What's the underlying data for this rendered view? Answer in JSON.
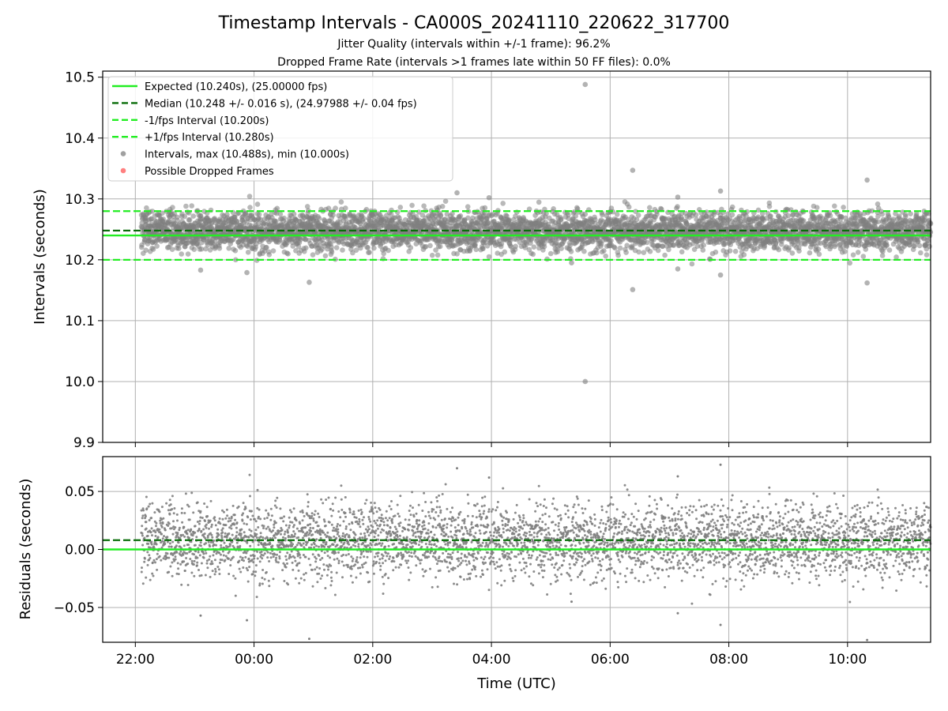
{
  "chart_data": {
    "type": "scatter",
    "title": "Timestamp Intervals - CA000S_20241110_220622_317700",
    "subtitle_1": "Jitter Quality (intervals within +/-1 frame): 96.2%",
    "subtitle_2": "Dropped Frame Rate (intervals >1 frames late within 50 FF files): 0.0%",
    "xlabel": "Time (UTC)",
    "x_range_hours": [
      21.45,
      35.4
    ],
    "x_ticks": [
      {
        "hour": 22,
        "label": "22:00"
      },
      {
        "hour": 24,
        "label": "00:00"
      },
      {
        "hour": 26,
        "label": "02:00"
      },
      {
        "hour": 28,
        "label": "04:00"
      },
      {
        "hour": 30,
        "label": "06:00"
      },
      {
        "hour": 32,
        "label": "08:00"
      },
      {
        "hour": 34,
        "label": "10:00"
      }
    ],
    "data_start_hour": 22.1,
    "data_end_hour": 35.4,
    "grid": true,
    "top_panel": {
      "ylabel": "Intervals (seconds)",
      "ylim": [
        9.9,
        10.51
      ],
      "y_ticks": [
        "9.9",
        "10.0",
        "10.1",
        "10.2",
        "10.3",
        "10.4",
        "10.5"
      ],
      "y_tick_values": [
        9.9,
        10.0,
        10.1,
        10.2,
        10.3,
        10.4,
        10.5
      ],
      "expected": 10.24,
      "median": 10.248,
      "lower_bound": 10.2,
      "upper_bound": 10.28,
      "point_sigma": 0.016,
      "outliers": [
        {
          "hour": 29.58,
          "value": 10.488
        },
        {
          "hour": 29.58,
          "value": 10.0
        },
        {
          "hour": 30.38,
          "value": 10.347
        },
        {
          "hour": 30.38,
          "value": 10.151
        },
        {
          "hour": 34.33,
          "value": 10.331
        },
        {
          "hour": 34.33,
          "value": 10.162
        },
        {
          "hour": 24.93,
          "value": 10.163
        },
        {
          "hour": 23.1,
          "value": 10.183
        },
        {
          "hour": 23.88,
          "value": 10.179
        },
        {
          "hour": 31.86,
          "value": 10.313
        },
        {
          "hour": 31.86,
          "value": 10.175
        },
        {
          "hour": 27.42,
          "value": 10.31
        },
        {
          "hour": 27.96,
          "value": 10.302
        },
        {
          "hour": 31.14,
          "value": 10.303
        },
        {
          "hour": 31.14,
          "value": 10.185
        },
        {
          "hour": 29.35,
          "value": 10.195
        }
      ],
      "legend": {
        "placement": "top-left",
        "entries": [
          {
            "label": "Expected (10.240s), (25.00000 fps)",
            "style": "solid",
            "color": "#22ee22"
          },
          {
            "label": "Median (10.248 +/- 0.016 s), (24.97988 +/- 0.04 fps)",
            "style": "dashed",
            "color": "#0a6e0a"
          },
          {
            "label": "-1/fps Interval (10.200s)",
            "style": "dashed",
            "color": "#22ee22"
          },
          {
            "label": "+1/fps Interval (10.280s)",
            "style": "dashed",
            "color": "#22ee22"
          },
          {
            "label": "Intervals, max (10.488s), min (10.000s)",
            "style": "marker",
            "color": "#808080"
          },
          {
            "label": "Possible Dropped Frames",
            "style": "marker",
            "color": "#ff5555"
          }
        ]
      }
    },
    "bottom_panel": {
      "ylabel": "Residuals (seconds)",
      "ylim": [
        -0.08,
        0.08
      ],
      "y_ticks": [
        "−0.05",
        "0.00",
        "0.05"
      ],
      "y_tick_values": [
        -0.05,
        0.0,
        0.05
      ],
      "expected_residual": 0.0,
      "median_residual": 0.008
    },
    "colors": {
      "expected": "#22ee22",
      "median": "#0a6e0a",
      "bounds": "#22ee22",
      "points": "#808080",
      "dropped": "#ff5555"
    }
  }
}
